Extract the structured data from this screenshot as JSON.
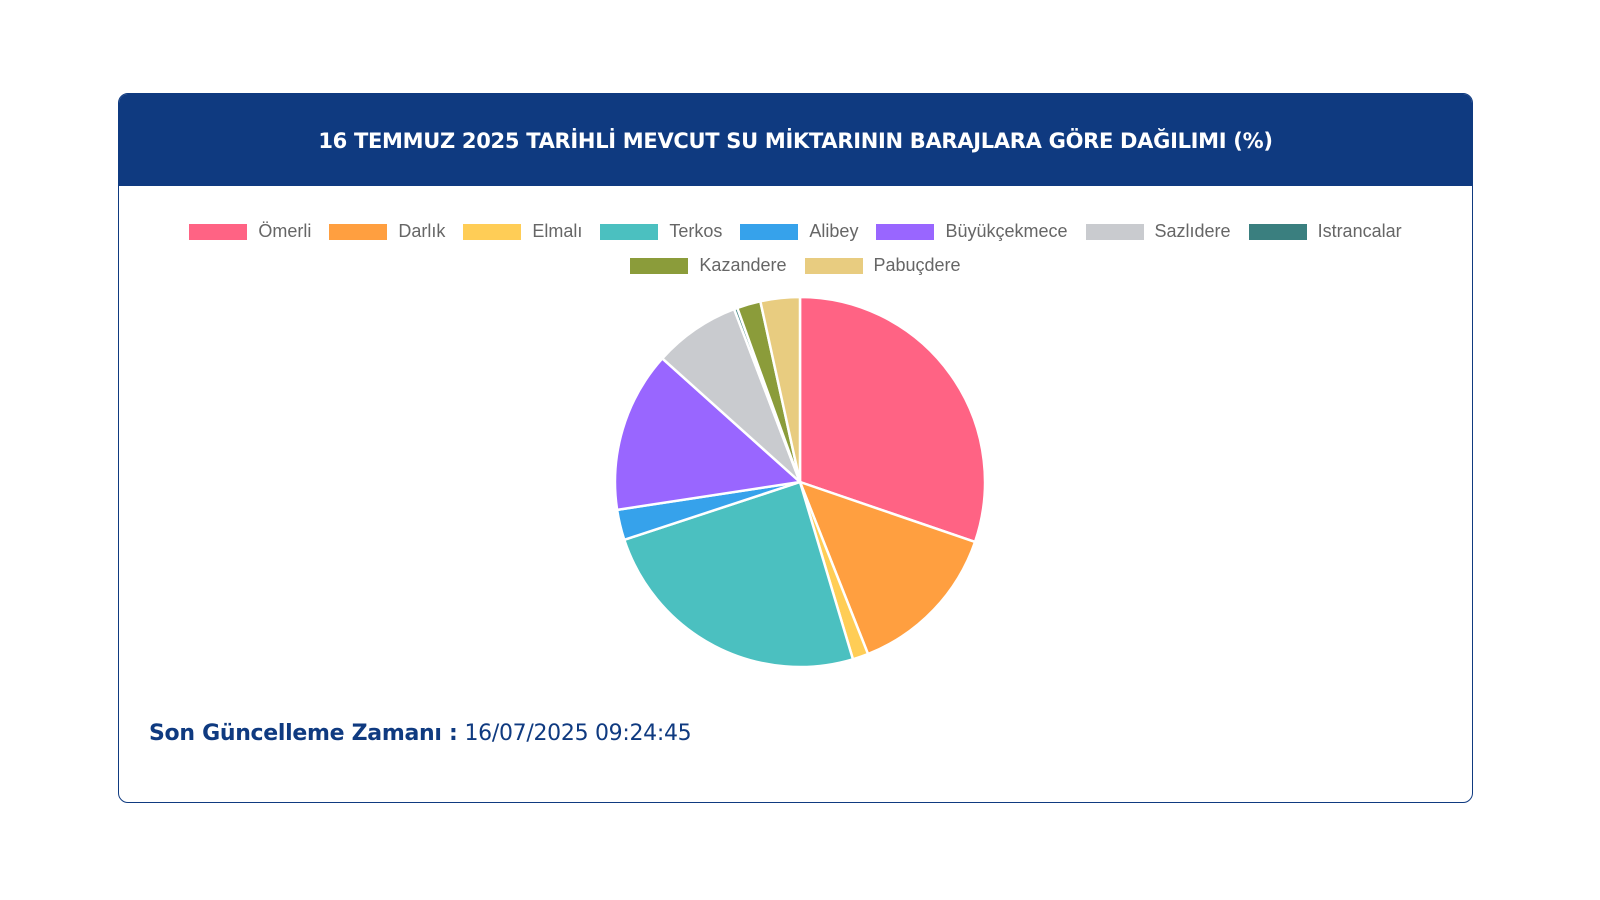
{
  "header": {
    "title": "16 TEMMUZ 2025 TARİHLİ MEVCUT SU MİKTARININ BARAJLARA GÖRE DAĞILIMI (%)"
  },
  "footer": {
    "label": "Son Güncelleme Zamanı :",
    "value": "16/07/2025 09:24:45"
  },
  "chart_data": {
    "type": "pie",
    "title": "16 TEMMUZ 2025 TARİHLİ MEVCUT SU MİKTARININ BARAJLARA GÖRE DAĞILIMI (%)",
    "legend_position": "top",
    "categories": [
      "Ömerli",
      "Darlık",
      "Elmalı",
      "Terkos",
      "Alibey",
      "Büyükçekmece",
      "Sazlıdere",
      "Istrancalar",
      "Kazandere",
      "Pabuçdere"
    ],
    "values": [
      30.8,
      14.0,
      1.4,
      25.0,
      2.7,
      14.3,
      7.7,
      0.3,
      2.1,
      3.5
    ],
    "colors": [
      "#ff6384",
      "#ff9f40",
      "#ffcd56",
      "#4bc0c0",
      "#36a2eb",
      "#9966ff",
      "#c9cbcf",
      "#3a7f7f",
      "#8b9c3a",
      "#e8cc80"
    ]
  }
}
